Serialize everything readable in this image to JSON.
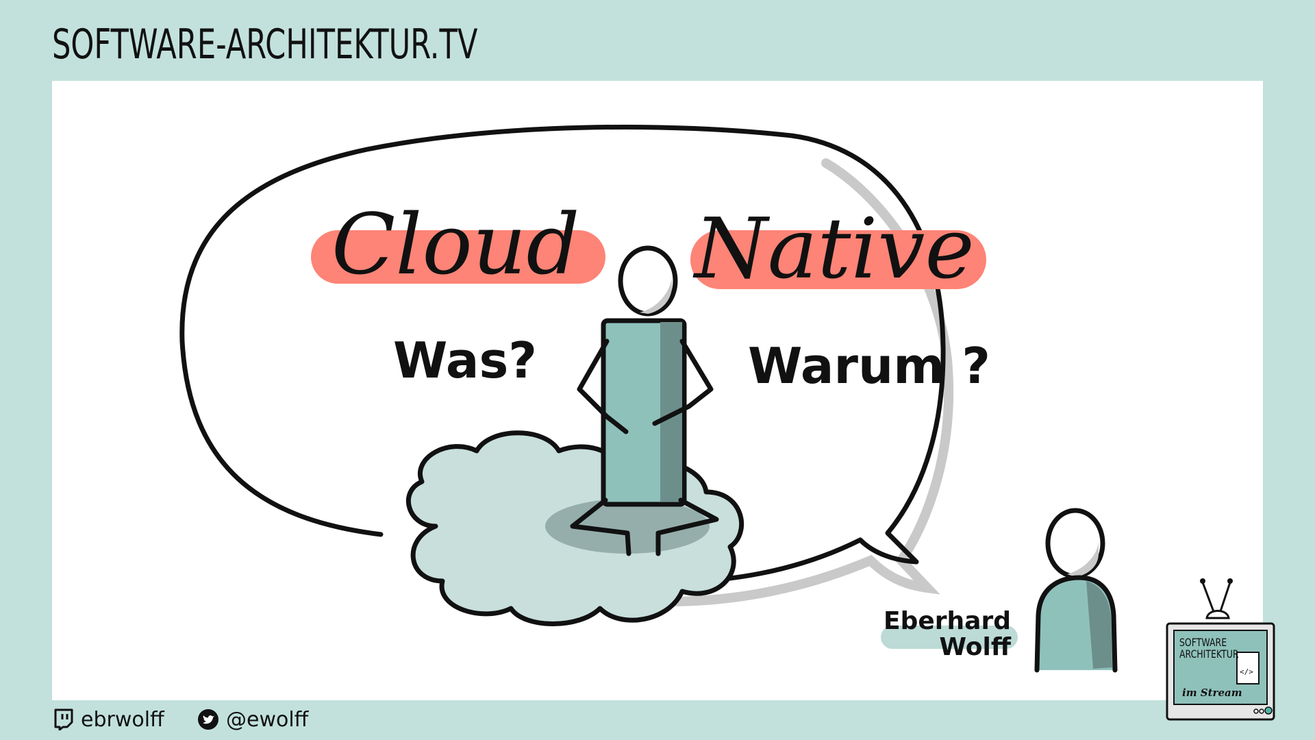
{
  "header": {
    "site_title": "SOFTWARE-ARCHITEKTUR.TV"
  },
  "slide": {
    "title_word_1": "Cloud",
    "title_word_2": "Native",
    "question_1": "Was?",
    "question_2": "Warum ?",
    "speaker_first": "Eberhard",
    "speaker_last": "Wolff"
  },
  "footer": {
    "twitch_handle": "ebrwolff",
    "twitter_handle": "@ewolff"
  },
  "logo": {
    "line_1": "SOFTWARE",
    "line_2": "ARCHITEKTUR",
    "sub": "im Stream"
  },
  "colors": {
    "background": "#c2e1dc",
    "highlight": "#fd8476",
    "figure_teal": "#8fc1bb",
    "cloud": "#c8dfdc"
  },
  "icons": [
    "twitch-icon",
    "twitter-bird-icon",
    "tv-logo-icon"
  ]
}
